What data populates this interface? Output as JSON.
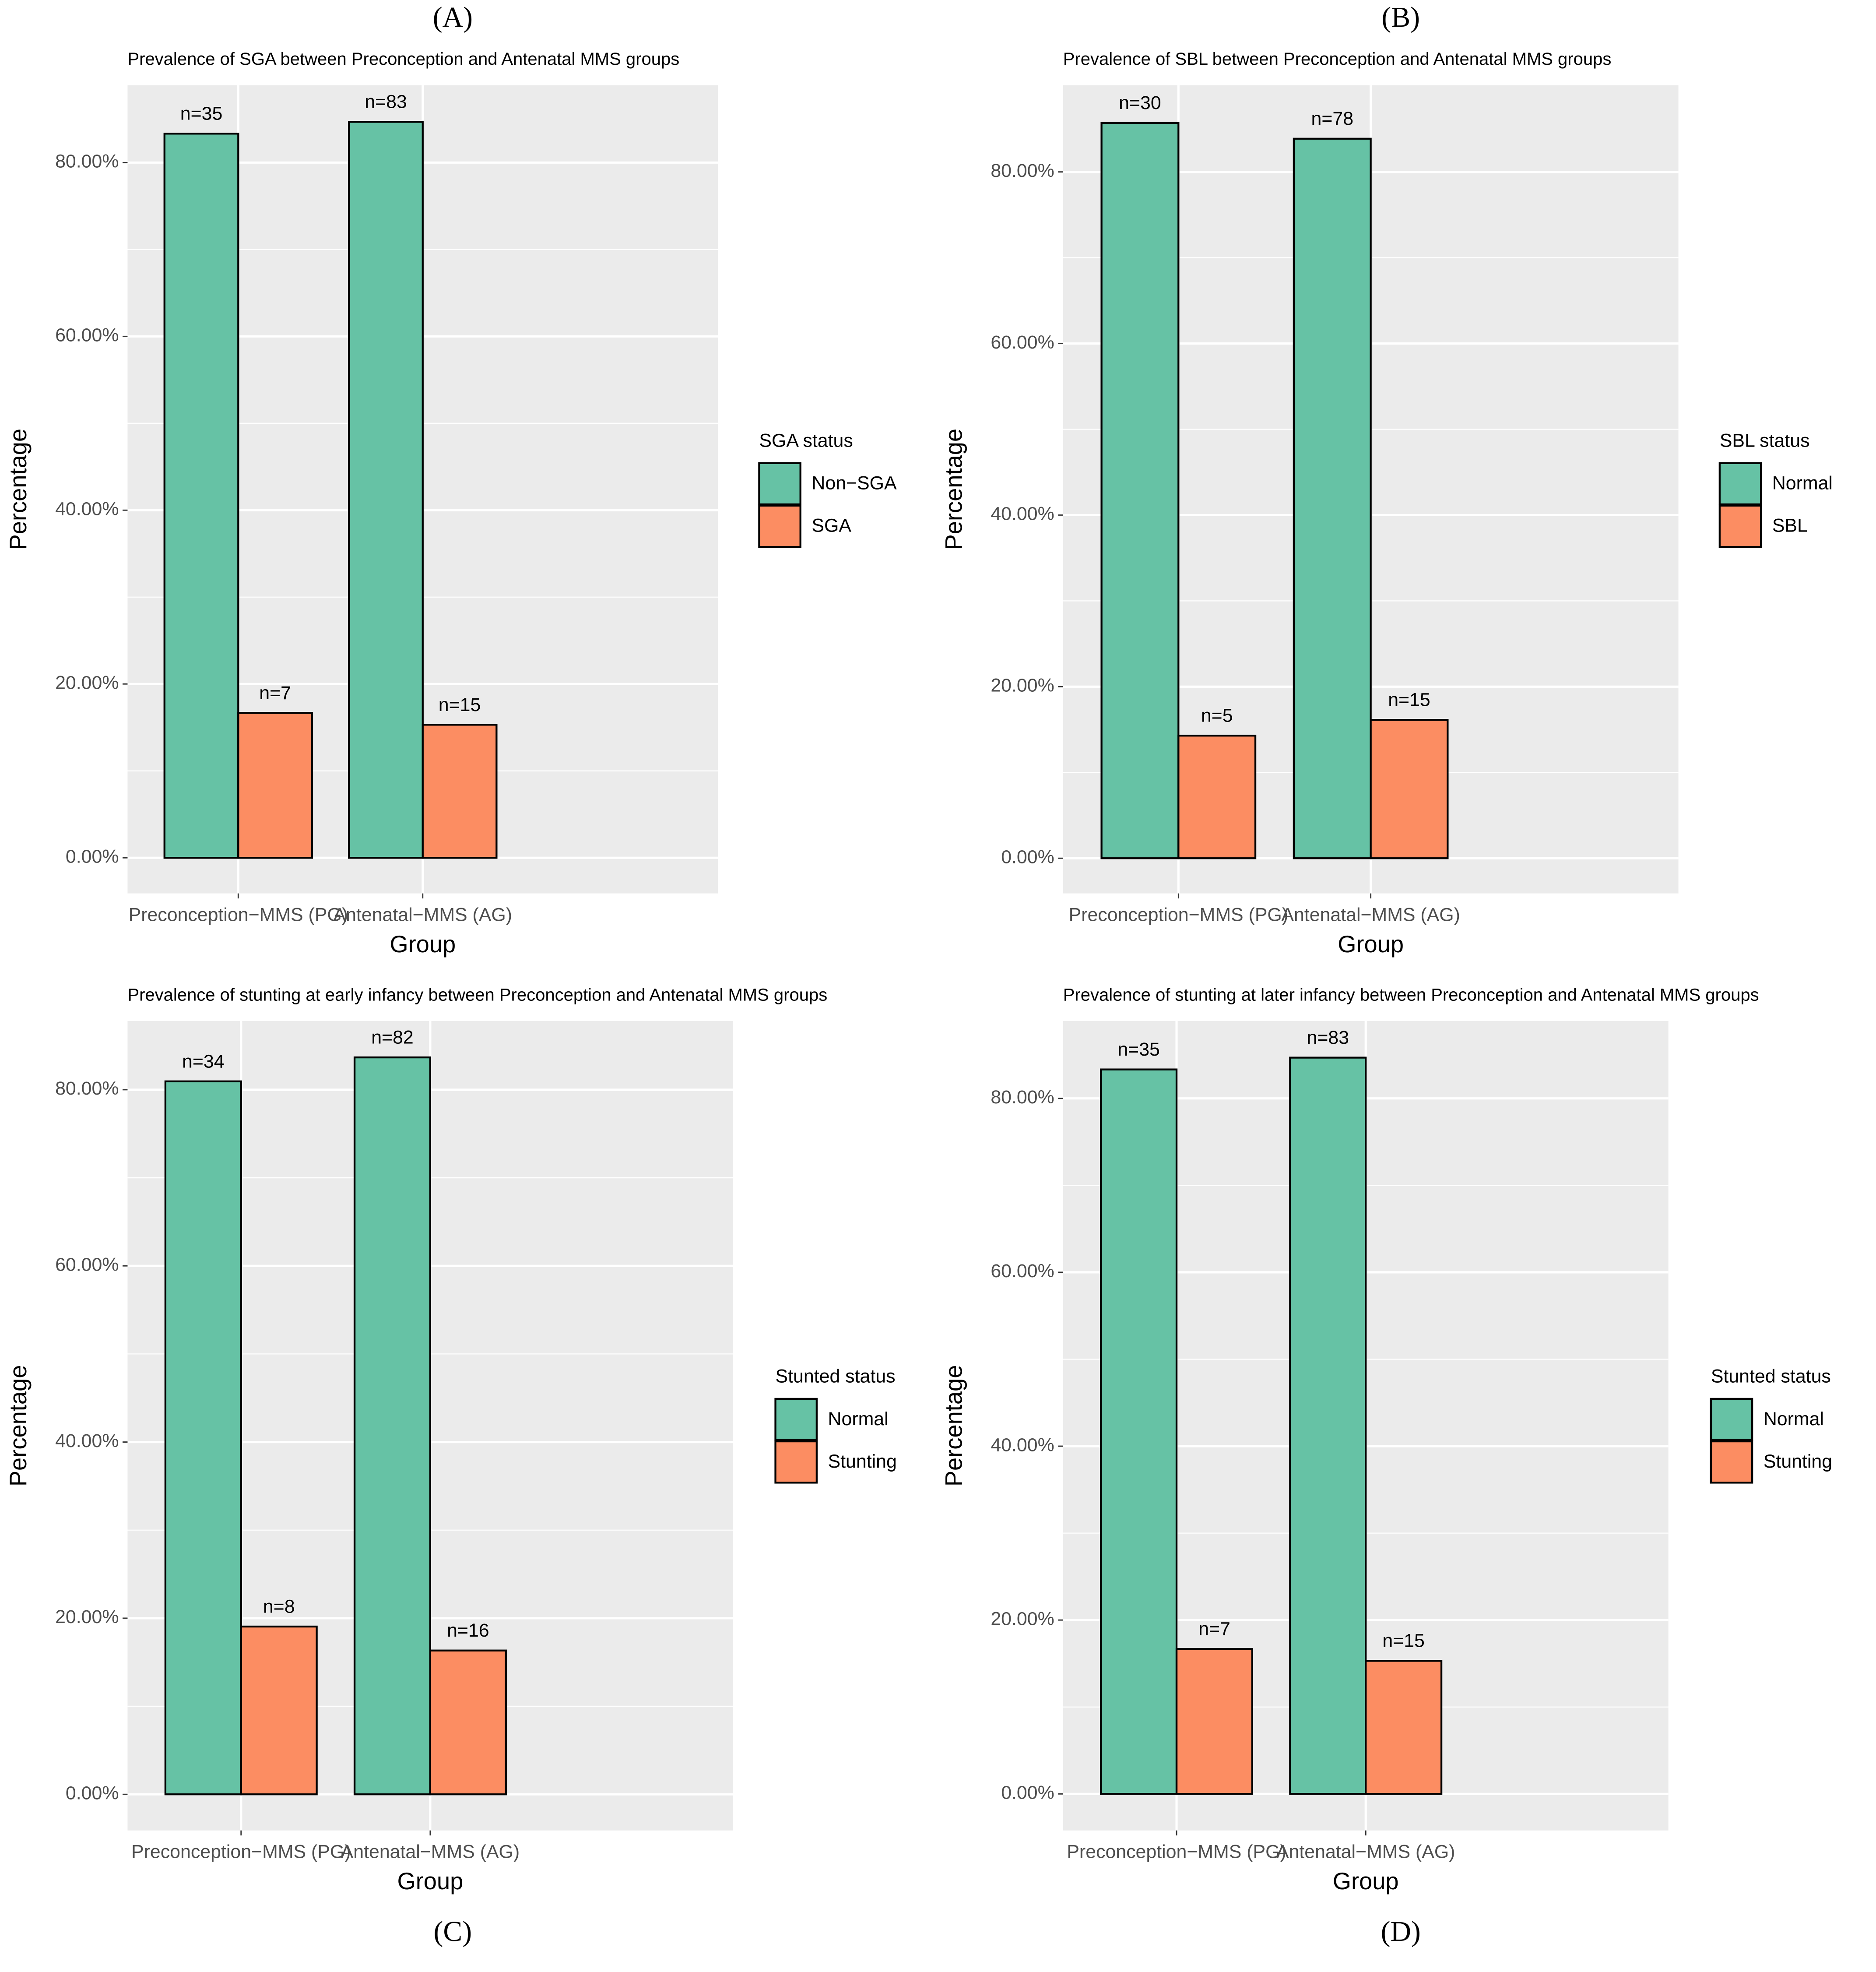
{
  "chart_data": [
    {
      "type": "bar",
      "panel_label": "(A)",
      "title": "Prevalence of SGA between Preconception and Antenatal MMS groups",
      "x_label": "Group",
      "y_label": "Percentage",
      "legend_title": "SGA status",
      "categories": [
        "Preconception−MMS (PG)",
        "Antenatal−MMS (AG)"
      ],
      "series": [
        {
          "name": "Non−SGA",
          "color": "#66c2a5",
          "values": [
            83.33,
            84.69
          ],
          "labels": [
            "n=35",
            "n=83"
          ]
        },
        {
          "name": "SGA",
          "color": "#fc8d62",
          "values": [
            16.67,
            15.31
          ],
          "labels": [
            "n=7",
            "n=15"
          ]
        }
      ],
      "ylim": [
        -4.1,
        88.9
      ],
      "yticks": [
        {
          "value": 0,
          "label": "0.00%"
        },
        {
          "value": 20,
          "label": "20.00%"
        },
        {
          "value": 40,
          "label": "40.00%"
        },
        {
          "value": 60,
          "label": "60.00%"
        },
        {
          "value": 80,
          "label": "80.00%"
        }
      ],
      "grid": true
    },
    {
      "type": "bar",
      "panel_label": "(B)",
      "title": "Prevalence of SBL between Preconception and Antenatal MMS groups",
      "x_label": "Group",
      "y_label": "Percentage",
      "legend_title": "SBL status",
      "categories": [
        "Preconception−MMS (PG)",
        "Antenatal−MMS (AG)"
      ],
      "series": [
        {
          "name": "Normal",
          "color": "#66c2a5",
          "values": [
            85.71,
            83.87
          ],
          "labels": [
            "n=30",
            "n=78"
          ]
        },
        {
          "name": "SBL",
          "color": "#fc8d62",
          "values": [
            14.29,
            16.13
          ],
          "labels": [
            "n=5",
            "n=15"
          ]
        }
      ],
      "ylim": [
        -4.1,
        90.1
      ],
      "yticks": [
        {
          "value": 0,
          "label": "0.00%"
        },
        {
          "value": 20,
          "label": "20.00%"
        },
        {
          "value": 40,
          "label": "40.00%"
        },
        {
          "value": 60,
          "label": "60.00%"
        },
        {
          "value": 80,
          "label": "80.00%"
        }
      ],
      "grid": true
    },
    {
      "type": "bar",
      "panel_label": "(C)",
      "title": "Prevalence of stunting at early infancy between Preconception and Antenatal MMS groups",
      "x_label": "Group",
      "y_label": "Percentage",
      "legend_title": "Stunted status",
      "categories": [
        "Preconception−MMS (PG)",
        "Antenatal−MMS (AG)"
      ],
      "series": [
        {
          "name": "Normal",
          "color": "#66c2a5",
          "values": [
            80.95,
            83.67
          ],
          "labels": [
            "n=34",
            "n=82"
          ]
        },
        {
          "name": "Stunting",
          "color": "#fc8d62",
          "values": [
            19.05,
            16.33
          ],
          "labels": [
            "n=8",
            "n=16"
          ]
        }
      ],
      "ylim": [
        -4.1,
        87.8
      ],
      "yticks": [
        {
          "value": 0,
          "label": "0.00%"
        },
        {
          "value": 20,
          "label": "20.00%"
        },
        {
          "value": 40,
          "label": "40.00%"
        },
        {
          "value": 60,
          "label": "60.00%"
        },
        {
          "value": 80,
          "label": "80.00%"
        }
      ],
      "grid": true
    },
    {
      "type": "bar",
      "panel_label": "(D)",
      "title": "Prevalence of stunting at later infancy between Preconception and Antenatal MMS groups",
      "x_label": "Group",
      "y_label": "Percentage",
      "legend_title": "Stunted status",
      "categories": [
        "Preconception−MMS (PG)",
        "Antenatal−MMS (AG)"
      ],
      "series": [
        {
          "name": "Normal",
          "color": "#66c2a5",
          "values": [
            83.33,
            84.69
          ],
          "labels": [
            "n=35",
            "n=83"
          ]
        },
        {
          "name": "Stunting",
          "color": "#fc8d62",
          "values": [
            16.67,
            15.31
          ],
          "labels": [
            "n=7",
            "n=15"
          ]
        }
      ],
      "ylim": [
        -4.2,
        88.9
      ],
      "yticks": [
        {
          "value": 0,
          "label": "0.00%"
        },
        {
          "value": 20,
          "label": "20.00%"
        },
        {
          "value": 40,
          "label": "40.00%"
        },
        {
          "value": 60,
          "label": "60.00%"
        },
        {
          "value": 80,
          "label": "80.00%"
        }
      ],
      "grid": true
    }
  ]
}
